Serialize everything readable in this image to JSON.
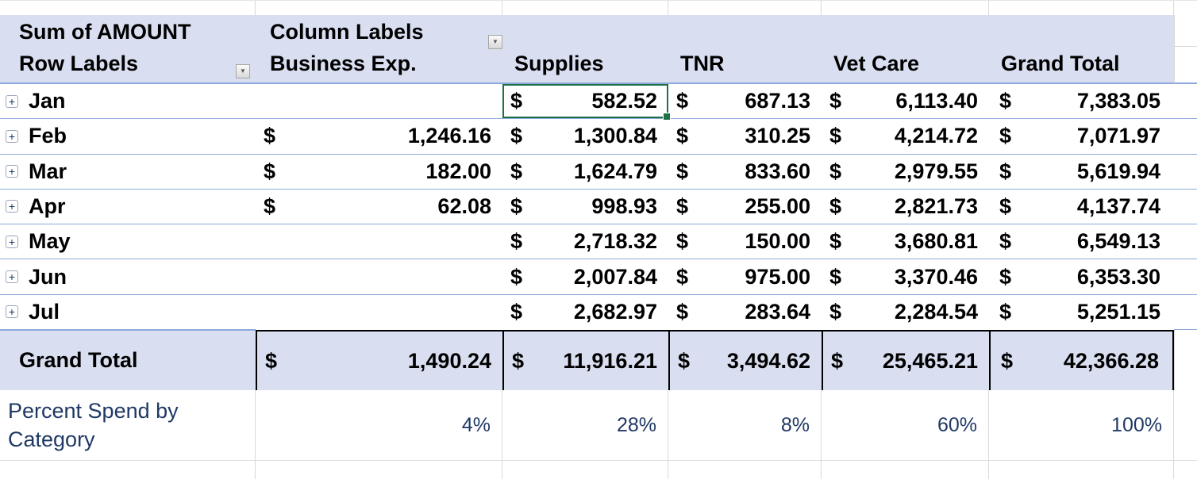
{
  "pivot": {
    "corner_title": "Sum of AMOUNT",
    "row_labels_title": "Row Labels",
    "column_labels_title": "Column Labels",
    "currency_symbol": "$",
    "columns": [
      "Business Exp.",
      "Supplies",
      "TNR",
      "Vet Care",
      "Grand Total"
    ],
    "rows": [
      {
        "label": "Jan",
        "values": [
          "",
          "582.52",
          "687.13",
          "6,113.40",
          "7,383.05"
        ]
      },
      {
        "label": "Feb",
        "values": [
          "1,246.16",
          "1,300.84",
          "310.25",
          "4,214.72",
          "7,071.97"
        ]
      },
      {
        "label": "Mar",
        "values": [
          "182.00",
          "1,624.79",
          "833.60",
          "2,979.55",
          "5,619.94"
        ]
      },
      {
        "label": "Apr",
        "values": [
          "62.08",
          "998.93",
          "255.00",
          "2,821.73",
          "4,137.74"
        ]
      },
      {
        "label": "May",
        "values": [
          "",
          "2,718.32",
          "150.00",
          "3,680.81",
          "6,549.13"
        ]
      },
      {
        "label": "Jun",
        "values": [
          "",
          "2,007.84",
          "975.00",
          "3,370.46",
          "6,353.30"
        ]
      },
      {
        "label": "Jul",
        "values": [
          "",
          "2,682.97",
          "283.64",
          "2,284.54",
          "5,251.15"
        ]
      }
    ],
    "grand_total": {
      "label": "Grand Total",
      "values": [
        "1,490.24",
        "11,916.21",
        "3,494.62",
        "25,465.21",
        "42,366.28"
      ]
    },
    "percent": {
      "label": "Percent Spend by Category",
      "values": [
        "4%",
        "28%",
        "8%",
        "60%",
        "100%"
      ]
    }
  },
  "icons": {
    "dropdown_glyph": "▼",
    "expand_glyph": "+"
  },
  "colors": {
    "header_band": "#D9DFF0",
    "row_separator": "#8EA9DB",
    "selection_green": "#1E7145",
    "percent_text": "#1F3864",
    "grid_line": "#D9D9D9",
    "text": "#000000"
  }
}
